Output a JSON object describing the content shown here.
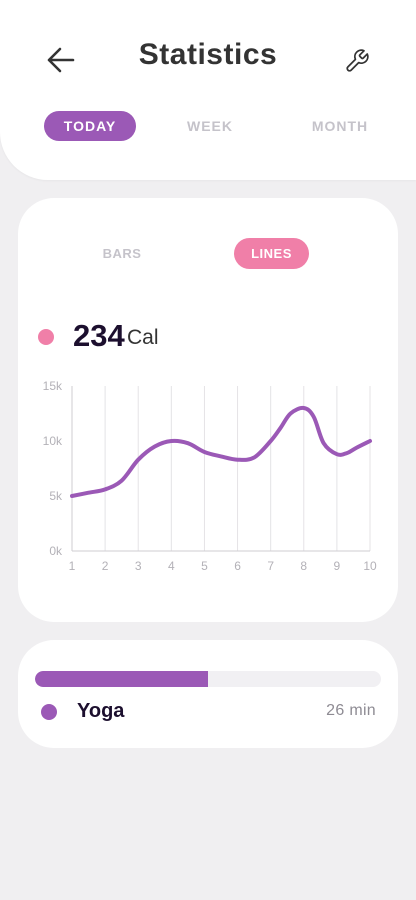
{
  "header": {
    "title": "Statistics",
    "back_icon": "arrow-left-icon",
    "settings_icon": "wrench-icon",
    "period_tabs": [
      {
        "label": "TODAY",
        "active": true
      },
      {
        "label": "WEEK",
        "active": false
      },
      {
        "label": "MONTH",
        "active": false
      }
    ]
  },
  "colors": {
    "accent_purple": "#9b59b6",
    "accent_pink": "#f07fa8",
    "background": "#f0eff1"
  },
  "chart_card": {
    "view_tabs": [
      {
        "label": "BARS",
        "active": false
      },
      {
        "label": "LINES",
        "active": true
      }
    ],
    "metric_value": "234",
    "metric_unit": "Cal"
  },
  "chart_data": {
    "type": "line",
    "x": [
      1,
      1.5,
      2,
      2.5,
      3,
      3.5,
      4,
      4.5,
      5,
      5.5,
      6,
      6.5,
      7,
      7.3,
      7.6,
      8,
      8.3,
      8.6,
      9,
      9.3,
      9.6,
      10
    ],
    "series": [
      {
        "values": [
          5000,
          5300,
          5600,
          6400,
          8300,
          9500,
          10000,
          9800,
          9000,
          8600,
          8300,
          8500,
          10000,
          11200,
          12500,
          13000,
          12200,
          9800,
          8800,
          8900,
          9400,
          10000
        ]
      }
    ],
    "x_ticks": [
      "1",
      "2",
      "3",
      "4",
      "5",
      "6",
      "7",
      "8",
      "9",
      "10"
    ],
    "y_ticks": [
      "0k",
      "5k",
      "10k",
      "15k"
    ],
    "xlim": [
      1,
      10
    ],
    "ylim": [
      0,
      15000
    ],
    "grid": "vertical",
    "line_color": "#9b59b6"
  },
  "activity": {
    "name": "Yoga",
    "duration": "26 min",
    "progress_fraction": 0.5
  }
}
